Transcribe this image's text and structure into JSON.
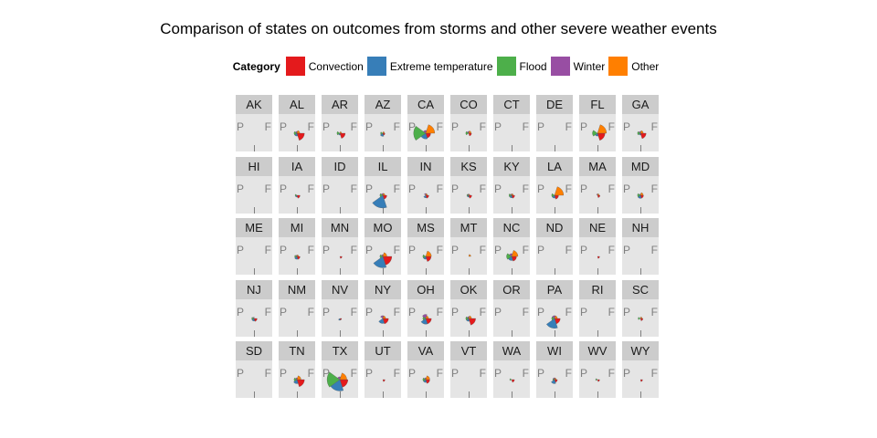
{
  "chart_data": {
    "type": "polar-rose-facets",
    "title": "Comparison of states on outcomes from storms and other severe weather events",
    "legend": {
      "title": "Category",
      "placement": "top",
      "items": [
        {
          "name": "Convection",
          "color": "#E41A1C"
        },
        {
          "name": "Extreme temperature",
          "color": "#377EB8"
        },
        {
          "name": "Flood",
          "color": "#4DAF4A"
        },
        {
          "name": "Winter",
          "color": "#984EA3"
        },
        {
          "name": "Other",
          "color": "#FF7F00"
        }
      ]
    },
    "panel_labels": [
      "P",
      "F"
    ],
    "category_order": [
      "Convection",
      "Extreme temperature",
      "Flood",
      "Winter",
      "Other"
    ],
    "values_description_scale": "relative 0-1 radius per category wedge",
    "states": [
      {
        "state": "AK",
        "values": [
          0,
          0,
          0,
          0,
          0
        ]
      },
      {
        "state": "AL",
        "values": [
          0.35,
          0.05,
          0.05,
          0.02,
          0.05
        ]
      },
      {
        "state": "AR",
        "values": [
          0.18,
          0.02,
          0.05,
          0,
          0.02
        ]
      },
      {
        "state": "AZ",
        "values": [
          0.03,
          0.06,
          0.03,
          0,
          0.02
        ]
      },
      {
        "state": "CA",
        "values": [
          0.15,
          0.2,
          0.9,
          0.05,
          0.5
        ]
      },
      {
        "state": "CO",
        "values": [
          0.05,
          0,
          0.05,
          0.02,
          0.04
        ]
      },
      {
        "state": "CT",
        "values": [
          0,
          0,
          0,
          0,
          0
        ]
      },
      {
        "state": "DE",
        "values": [
          0,
          0,
          0,
          0,
          0
        ]
      },
      {
        "state": "FL",
        "values": [
          0.35,
          0.05,
          0.15,
          0,
          0.5
        ]
      },
      {
        "state": "GA",
        "values": [
          0.2,
          0.02,
          0.05,
          0.02,
          0.05
        ]
      },
      {
        "state": "HI",
        "values": [
          0,
          0,
          0,
          0,
          0
        ]
      },
      {
        "state": "IA",
        "values": [
          0.06,
          0.02,
          0.02,
          0,
          0
        ]
      },
      {
        "state": "ID",
        "values": [
          0,
          0,
          0,
          0,
          0
        ]
      },
      {
        "state": "IL",
        "values": [
          0.1,
          1.0,
          0.05,
          0.02,
          0.03
        ]
      },
      {
        "state": "IN",
        "values": [
          0.06,
          0.04,
          0,
          0.02,
          0.02
        ]
      },
      {
        "state": "KS",
        "values": [
          0.06,
          0.02,
          0.02,
          0.01,
          0.01
        ]
      },
      {
        "state": "KY",
        "values": [
          0.06,
          0.04,
          0.04,
          0.01,
          0.02
        ]
      },
      {
        "state": "LA",
        "values": [
          0.1,
          0.05,
          0.05,
          0,
          0.5
        ]
      },
      {
        "state": "MA",
        "values": [
          0.04,
          0,
          0,
          0.01,
          0.02
        ]
      },
      {
        "state": "MD",
        "values": [
          0.06,
          0.06,
          0.05,
          0.01,
          0.05
        ]
      },
      {
        "state": "ME",
        "values": [
          0,
          0,
          0,
          0,
          0
        ]
      },
      {
        "state": "MI",
        "values": [
          0.06,
          0.05,
          0.03,
          0.01,
          0.02
        ]
      },
      {
        "state": "MN",
        "values": [
          0.03,
          0,
          0,
          0,
          0
        ]
      },
      {
        "state": "MO",
        "values": [
          0.5,
          0.8,
          0.05,
          0.02,
          0.1
        ]
      },
      {
        "state": "MS",
        "values": [
          0.18,
          0.05,
          0.05,
          0,
          0.2
        ]
      },
      {
        "state": "MT",
        "values": [
          0,
          0,
          0,
          0,
          0.03
        ]
      },
      {
        "state": "NC",
        "values": [
          0.15,
          0.1,
          0.15,
          0.05,
          0.25
        ]
      },
      {
        "state": "ND",
        "values": [
          0,
          0,
          0,
          0,
          0
        ]
      },
      {
        "state": "NE",
        "values": [
          0.03,
          0,
          0,
          0,
          0
        ]
      },
      {
        "state": "NH",
        "values": [
          0,
          0,
          0,
          0,
          0
        ]
      },
      {
        "state": "NJ",
        "values": [
          0.06,
          0.04,
          0.03,
          0.01,
          0
        ]
      },
      {
        "state": "NM",
        "values": [
          0,
          0,
          0,
          0,
          0
        ]
      },
      {
        "state": "NV",
        "values": [
          0.02,
          0.02,
          0,
          0,
          0
        ]
      },
      {
        "state": "NY",
        "values": [
          0.2,
          0.15,
          0,
          0.05,
          0.05
        ]
      },
      {
        "state": "OH",
        "values": [
          0.2,
          0.2,
          0.05,
          0.1,
          0.05
        ]
      },
      {
        "state": "OK",
        "values": [
          0.3,
          0.05,
          0.05,
          0.02,
          0.05
        ]
      },
      {
        "state": "OR",
        "values": [
          0,
          0,
          0,
          0,
          0
        ]
      },
      {
        "state": "PA",
        "values": [
          0.2,
          0.6,
          0.05,
          0.05,
          0.05
        ]
      },
      {
        "state": "RI",
        "values": [
          0,
          0,
          0,
          0,
          0
        ]
      },
      {
        "state": "SC",
        "values": [
          0.04,
          0,
          0.03,
          0,
          0.02
        ]
      },
      {
        "state": "SD",
        "values": [
          0,
          0,
          0,
          0,
          0
        ]
      },
      {
        "state": "TN",
        "values": [
          0.35,
          0.1,
          0.05,
          0.02,
          0.1
        ]
      },
      {
        "state": "TX",
        "values": [
          0.4,
          0.8,
          1.0,
          0.05,
          0.3
        ]
      },
      {
        "state": "UT",
        "values": [
          0.03,
          0,
          0,
          0,
          0
        ]
      },
      {
        "state": "VA",
        "values": [
          0.1,
          0.05,
          0.05,
          0.02,
          0.1
        ]
      },
      {
        "state": "VT",
        "values": [
          0,
          0,
          0,
          0,
          0
        ]
      },
      {
        "state": "WA",
        "values": [
          0.05,
          0,
          0.02,
          0,
          0
        ]
      },
      {
        "state": "WI",
        "values": [
          0.05,
          0.1,
          0.02,
          0.02,
          0.02
        ]
      },
      {
        "state": "WV",
        "values": [
          0.03,
          0,
          0.02,
          0,
          0
        ]
      },
      {
        "state": "WY",
        "values": [
          0.03,
          0,
          0,
          0,
          0
        ]
      }
    ]
  }
}
